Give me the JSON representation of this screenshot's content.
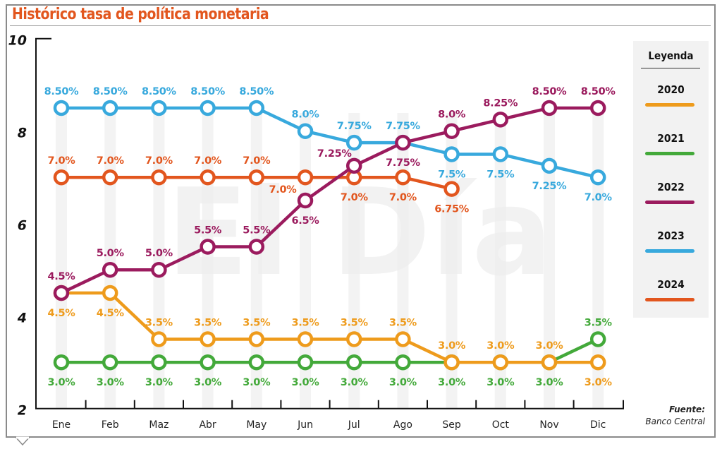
{
  "title": "Histórico tasa de política monetaria",
  "source": {
    "label": "Fuente:",
    "value": "Banco Central"
  },
  "watermark": "El Día",
  "legend": {
    "title": "Leyenda",
    "items": [
      {
        "label": "2020",
        "color": "#ee9b1c"
      },
      {
        "label": "2021",
        "color": "#43a93a"
      },
      {
        "label": "2022",
        "color": "#9b1b5e"
      },
      {
        "label": "2023",
        "color": "#38a9dd"
      },
      {
        "label": "2024",
        "color": "#e2561e"
      }
    ]
  },
  "chart_data": {
    "type": "line",
    "title": "Histórico tasa de política monetaria",
    "xlabel": "",
    "ylabel": "",
    "ylim": [
      2,
      10
    ],
    "yticks": [
      "2",
      "4",
      "6",
      "8",
      "10"
    ],
    "grid": false,
    "legend_position": "right",
    "categories": [
      "Ene",
      "Feb",
      "Maz",
      "Abr",
      "May",
      "Jun",
      "Jul",
      "Ago",
      "Sep",
      "Oct",
      "Nov",
      "Dic"
    ],
    "series": [
      {
        "name": "2020",
        "color": "#ee9b1c",
        "values": [
          4.5,
          4.5,
          3.5,
          3.5,
          3.5,
          3.5,
          3.5,
          3.5,
          3.0,
          3.0,
          3.0,
          3.0
        ],
        "labels": [
          "4.5%",
          "4.5%",
          "3.5%",
          "3.5%",
          "3.5%",
          "3.5%",
          "3.5%",
          "3.5%",
          "3.0%",
          "3.0%",
          "3.0%",
          "3.0%"
        ],
        "label_pos": [
          "below",
          "below",
          "above",
          "above",
          "above",
          "above",
          "above",
          "above",
          "above",
          "above",
          "above",
          "below"
        ]
      },
      {
        "name": "2021",
        "color": "#43a93a",
        "values": [
          3.0,
          3.0,
          3.0,
          3.0,
          3.0,
          3.0,
          3.0,
          3.0,
          3.0,
          3.0,
          3.0,
          3.5
        ],
        "labels": [
          "3.0%",
          "3.0%",
          "3.0%",
          "3.0%",
          "3.0%",
          "3.0%",
          "3.0%",
          "3.0%",
          "3.0%",
          "3.0%",
          "3.0%",
          "3.5%"
        ],
        "label_pos": [
          "below",
          "below",
          "below",
          "below",
          "below",
          "below",
          "below",
          "below",
          "below",
          "below",
          "below",
          "above"
        ]
      },
      {
        "name": "2022",
        "color": "#9b1b5e",
        "values": [
          4.5,
          5.0,
          5.0,
          5.5,
          5.5,
          6.5,
          7.25,
          7.75,
          8.0,
          8.25,
          8.5,
          8.5
        ],
        "labels": [
          "4.5%",
          "5.0%",
          "5.0%",
          "5.5%",
          "5.5%",
          "6.5%",
          "7.25%",
          "7.75%",
          "8.0%",
          "8.25%",
          "8.50%",
          "8.50%"
        ],
        "label_pos": [
          "above",
          "above",
          "above",
          "above",
          "above",
          "below",
          "above-left",
          "below",
          "above",
          "above",
          "above",
          "above"
        ]
      },
      {
        "name": "2023",
        "color": "#38a9dd",
        "values": [
          8.5,
          8.5,
          8.5,
          8.5,
          8.5,
          8.0,
          7.75,
          7.75,
          7.5,
          7.5,
          7.25,
          7.0
        ],
        "labels": [
          "8.50%",
          "8.50%",
          "8.50%",
          "8.50%",
          "8.50%",
          "8.0%",
          "7.75%",
          "7.75%",
          "7.5%",
          "7.5%",
          "7.25%",
          "7.0%"
        ],
        "label_pos": [
          "above",
          "above",
          "above",
          "above",
          "above",
          "above",
          "above",
          "above",
          "below",
          "below",
          "below",
          "below"
        ]
      },
      {
        "name": "2024",
        "color": "#e2561e",
        "values": [
          7.0,
          7.0,
          7.0,
          7.0,
          7.0,
          7.0,
          7.0,
          7.0,
          6.75
        ],
        "labels": [
          "7.0%",
          "7.0%",
          "7.0%",
          "7.0%",
          "7.0%",
          "7.0%",
          "7.0%",
          "7.0%",
          "6.75%"
        ],
        "label_pos": [
          "above",
          "above",
          "above",
          "above",
          "above",
          "below-left",
          "below",
          "below",
          "below"
        ]
      }
    ],
    "draw_order": [
      "2021",
      "2020",
      "2024",
      "2023",
      "2022"
    ]
  }
}
